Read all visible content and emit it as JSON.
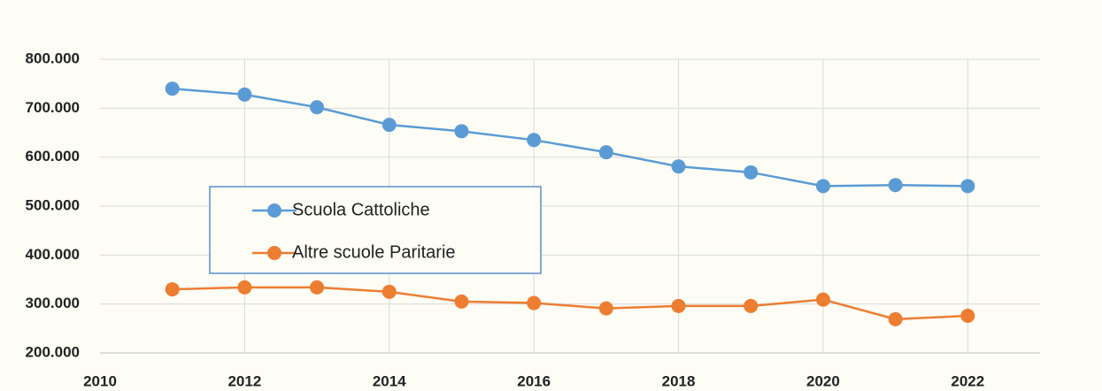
{
  "chart_data": {
    "type": "line",
    "x": [
      2011,
      2012,
      2013,
      2014,
      2015,
      2016,
      2017,
      2018,
      2019,
      2020,
      2021,
      2022
    ],
    "series": [
      {
        "name": "Scuola Cattoliche",
        "color": "#5b9bd5",
        "values": [
          740000,
          728000,
          702000,
          666000,
          653000,
          635000,
          610000,
          581000,
          569000,
          541000,
          543000,
          541000
        ]
      },
      {
        "name": "Altre scuole Paritarie",
        "color": "#ed7d31",
        "values": [
          330000,
          334000,
          334000,
          325000,
          305000,
          302000,
          291000,
          296000,
          296000,
          309000,
          269000,
          276000
        ]
      }
    ],
    "xlim": [
      2010,
      2023
    ],
    "xticks": [
      2010,
      2012,
      2014,
      2016,
      2018,
      2020,
      2022
    ],
    "ylim": [
      200000,
      800000
    ],
    "yticks": [
      {
        "value": 200000,
        "label": "200.000"
      },
      {
        "value": 300000,
        "label": "300.000"
      },
      {
        "value": 400000,
        "label": "400.000"
      },
      {
        "value": 500000,
        "label": "500.000"
      },
      {
        "value": 600000,
        "label": "600.000"
      },
      {
        "value": 700000,
        "label": "700.000"
      },
      {
        "value": 800000,
        "label": "800.000"
      }
    ],
    "grid": true,
    "legend": "center-left"
  }
}
